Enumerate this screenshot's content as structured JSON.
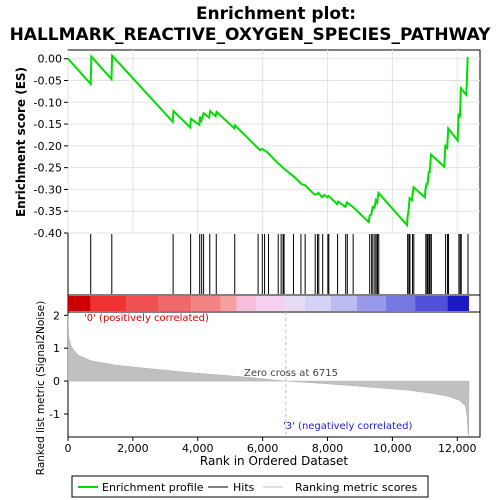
{
  "chart_data": {
    "type": "line",
    "title_line1": "Enrichment plot:",
    "title_line2": "HALLMARK_REACTIVE_OXYGEN_SPECIES_PATHWAY",
    "es_ylabel": "Enrichment score (ES)",
    "metric_ylabel": "Ranked list metric (Signal2Noise)",
    "xlabel": "Rank in Ordered Dataset",
    "xlim": [
      0,
      12700
    ],
    "es_ylim": [
      -0.4,
      0.02
    ],
    "metric_ylim": [
      -1.7,
      2.1
    ],
    "x_ticks": [
      0,
      2000,
      4000,
      6000,
      8000,
      10000,
      12000
    ],
    "x_tick_labels": [
      "0",
      "2,000",
      "4,000",
      "6,000",
      "8,000",
      "10,000",
      "12,000"
    ],
    "es_ticks": [
      0.0,
      -0.05,
      -0.1,
      -0.15,
      -0.2,
      -0.25,
      -0.3,
      -0.35,
      -0.4
    ],
    "es_tick_labels": [
      "0.00",
      "-0.05",
      "-0.10",
      "-0.15",
      "-0.20",
      "-0.25",
      "-0.30",
      "-0.35",
      "-0.40"
    ],
    "metric_ticks": [
      2,
      1,
      0,
      -1
    ],
    "metric_tick_labels": [
      "2",
      "1",
      "0",
      "-1"
    ],
    "zero_cross_rank": 6715,
    "annotations": {
      "zero_cross": "Zero cross at 6715",
      "positive": "'0' (positively correlated)",
      "negative": "'3' (negatively correlated)"
    },
    "legend": [
      {
        "label": "Enrichment profile",
        "color": "#00dd00"
      },
      {
        "label": "Hits",
        "color": "#000000"
      },
      {
        "label": "Ranking metric scores",
        "color": "#c0c0c0"
      }
    ],
    "series": [
      {
        "name": "Enrichment profile",
        "color": "#00dd00",
        "points": [
          [
            0,
            0.0
          ],
          [
            700,
            -0.058
          ],
          [
            720,
            0.005
          ],
          [
            1340,
            -0.047
          ],
          [
            1360,
            0.007
          ],
          [
            3230,
            -0.145
          ],
          [
            3250,
            -0.12
          ],
          [
            3770,
            -0.158
          ],
          [
            3790,
            -0.138
          ],
          [
            4050,
            -0.152
          ],
          [
            4070,
            -0.133
          ],
          [
            4110,
            -0.142
          ],
          [
            4180,
            -0.125
          ],
          [
            4350,
            -0.135
          ],
          [
            4380,
            -0.12
          ],
          [
            4550,
            -0.132
          ],
          [
            4580,
            -0.122
          ],
          [
            5130,
            -0.16
          ],
          [
            5150,
            -0.153
          ],
          [
            5850,
            -0.205
          ],
          [
            5920,
            -0.21
          ],
          [
            5980,
            -0.207
          ],
          [
            6050,
            -0.21
          ],
          [
            6150,
            -0.215
          ],
          [
            6470,
            -0.24
          ],
          [
            6560,
            -0.245
          ],
          [
            6620,
            -0.25
          ],
          [
            6650,
            -0.252
          ],
          [
            7000,
            -0.273
          ],
          [
            7200,
            -0.288
          ],
          [
            7300,
            -0.29
          ],
          [
            7600,
            -0.312
          ],
          [
            7680,
            -0.31
          ],
          [
            7720,
            -0.308
          ],
          [
            7830,
            -0.318
          ],
          [
            7900,
            -0.313
          ],
          [
            8000,
            -0.318
          ],
          [
            8030,
            -0.315
          ],
          [
            8300,
            -0.334
          ],
          [
            8330,
            -0.328
          ],
          [
            8550,
            -0.34
          ],
          [
            8600,
            -0.33
          ],
          [
            8780,
            -0.34
          ],
          [
            9270,
            -0.375
          ],
          [
            9300,
            -0.36
          ],
          [
            9350,
            -0.358
          ],
          [
            9390,
            -0.34
          ],
          [
            9450,
            -0.342
          ],
          [
            9490,
            -0.325
          ],
          [
            9530,
            -0.33
          ],
          [
            9570,
            -0.308
          ],
          [
            10450,
            -0.382
          ],
          [
            10470,
            -0.36
          ],
          [
            10500,
            -0.348
          ],
          [
            10530,
            -0.32
          ],
          [
            10600,
            -0.325
          ],
          [
            10650,
            -0.295
          ],
          [
            11000,
            -0.318
          ],
          [
            11020,
            -0.3
          ],
          [
            11060,
            -0.285
          ],
          [
            11080,
            -0.29
          ],
          [
            11120,
            -0.26
          ],
          [
            11150,
            -0.26
          ],
          [
            11190,
            -0.22
          ],
          [
            11600,
            -0.248
          ],
          [
            11630,
            -0.2
          ],
          [
            11690,
            -0.205
          ],
          [
            11720,
            -0.16
          ],
          [
            12010,
            -0.188
          ],
          [
            12040,
            -0.126
          ],
          [
            12080,
            -0.135
          ],
          [
            12110,
            -0.068
          ],
          [
            12280,
            -0.083
          ],
          [
            12320,
            0.004
          ]
        ]
      }
    ],
    "hits": [
      700,
      1350,
      3240,
      3780,
      4060,
      4120,
      4180,
      4370,
      4570,
      5140,
      5860,
      5990,
      6060,
      6180,
      6480,
      6570,
      6630,
      6660,
      6950,
      7180,
      7310,
      7620,
      7690,
      7730,
      7850,
      8010,
      8040,
      8310,
      8560,
      8610,
      8790,
      9300,
      9360,
      9400,
      9460,
      9500,
      9540,
      9580,
      10470,
      10510,
      10540,
      10620,
      10660,
      11030,
      11070,
      11090,
      11130,
      11160,
      11200,
      11640,
      11700,
      11730,
      12050,
      12090,
      12120,
      12330
    ],
    "metric_profile": [
      [
        0,
        2.02
      ],
      [
        20,
        1.35
      ],
      [
        100,
        1.05
      ],
      [
        300,
        0.8
      ],
      [
        700,
        0.62
      ],
      [
        1500,
        0.48
      ],
      [
        2500,
        0.38
      ],
      [
        3500,
        0.28
      ],
      [
        4500,
        0.2
      ],
      [
        5500,
        0.12
      ],
      [
        6200,
        0.05
      ],
      [
        6715,
        0.0
      ],
      [
        7500,
        -0.05
      ],
      [
        8500,
        -0.12
      ],
      [
        9500,
        -0.2
      ],
      [
        10500,
        -0.28
      ],
      [
        11200,
        -0.37
      ],
      [
        11700,
        -0.46
      ],
      [
        12050,
        -0.58
      ],
      [
        12250,
        -0.75
      ],
      [
        12300,
        -1.05
      ],
      [
        12330,
        -1.55
      ],
      [
        12350,
        -1.65
      ],
      [
        12360,
        0.0
      ]
    ],
    "colorbar": [
      {
        "from": 0,
        "to": 700,
        "color": "#cc0000"
      },
      {
        "from": 700,
        "to": 1800,
        "color": "#ee3333"
      },
      {
        "from": 1800,
        "to": 2800,
        "color": "#f25050"
      },
      {
        "from": 2800,
        "to": 3800,
        "color": "#f26868"
      },
      {
        "from": 3800,
        "to": 4700,
        "color": "#f48484"
      },
      {
        "from": 4700,
        "to": 5200,
        "color": "#f6a0a0"
      },
      {
        "from": 5200,
        "to": 5800,
        "color": "#f7bddc"
      },
      {
        "from": 5800,
        "to": 6715,
        "color": "#f5d0f0"
      },
      {
        "from": 6715,
        "to": 7300,
        "color": "#e6dcf5"
      },
      {
        "from": 7300,
        "to": 8100,
        "color": "#d4d2f5"
      },
      {
        "from": 8100,
        "to": 8900,
        "color": "#bcbcf2"
      },
      {
        "from": 8900,
        "to": 9800,
        "color": "#9a9aec"
      },
      {
        "from": 9800,
        "to": 10700,
        "color": "#7878e4"
      },
      {
        "from": 10700,
        "to": 11700,
        "color": "#5050d8"
      },
      {
        "from": 11700,
        "to": 12360,
        "color": "#1a1ac4"
      }
    ]
  }
}
